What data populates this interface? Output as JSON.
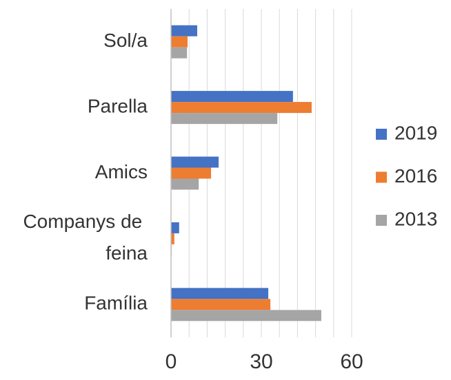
{
  "chart_data": {
    "type": "barh",
    "categories": [
      "Sol/a",
      "Parella",
      "Amics",
      "Companys de feina",
      "Família"
    ],
    "series": [
      {
        "name": "2019",
        "color": "#4472c4",
        "values": [
          8.7,
          40.5,
          15.8,
          2.7,
          32.3
        ]
      },
      {
        "name": "2016",
        "color": "#ed7d31",
        "values": [
          5.5,
          46.7,
          13.3,
          1.1,
          33.0
        ]
      },
      {
        "name": "2013",
        "color": "#a5a5a5",
        "values": [
          5.3,
          35.3,
          9.2,
          0.2,
          49.9
        ]
      }
    ],
    "xlim": [
      0,
      60
    ],
    "xticks": [
      0,
      30,
      60
    ],
    "xminor_ticks": [
      6,
      12,
      18,
      24,
      36,
      42,
      48,
      54
    ],
    "grid": true,
    "legend": "right"
  }
}
